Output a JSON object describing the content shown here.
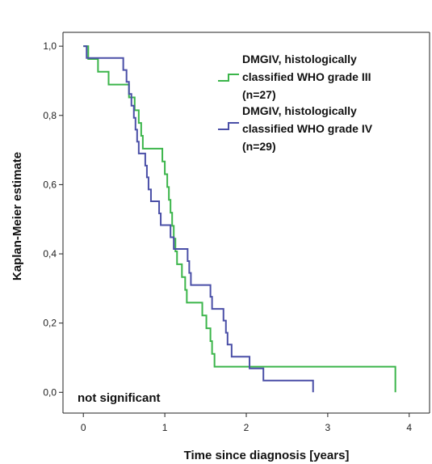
{
  "chart_data": {
    "type": "line",
    "title": "",
    "xlabel": "Time since diagnosis [years]",
    "ylabel": "Kaplan-Meier estimate",
    "xlim": [
      -0.25,
      4.25
    ],
    "ylim": [
      -0.06,
      1.04
    ],
    "x_ticks": [
      0,
      1,
      2,
      3,
      4
    ],
    "x_tick_labels": [
      "0",
      "1",
      "2",
      "3",
      "4"
    ],
    "y_ticks": [
      0.0,
      0.2,
      0.4,
      0.6,
      0.8,
      1.0
    ],
    "y_tick_labels": [
      "0,0",
      "0,2",
      "0,4",
      "0,6",
      "0,8",
      "1,0"
    ],
    "grid": false,
    "legend_position": "top-right",
    "annotation": "not significant",
    "series": [
      {
        "name_lines": [
          "DMGIV, histologically",
          "classified WHO grade III",
          "(n=27)"
        ],
        "color": "#3bb54a",
        "step": true,
        "points": [
          [
            0.0,
            1.0
          ],
          [
            0.06,
            0.963
          ],
          [
            0.17,
            0.963
          ],
          [
            0.18,
            0.926
          ],
          [
            0.3,
            0.926
          ],
          [
            0.31,
            0.889
          ],
          [
            0.55,
            0.889
          ],
          [
            0.56,
            0.852
          ],
          [
            0.62,
            0.852
          ],
          [
            0.63,
            0.815
          ],
          [
            0.67,
            0.815
          ],
          [
            0.68,
            0.778
          ],
          [
            0.7,
            0.778
          ],
          [
            0.71,
            0.741
          ],
          [
            0.72,
            0.741
          ],
          [
            0.73,
            0.704
          ],
          [
            0.96,
            0.704
          ],
          [
            0.97,
            0.667
          ],
          [
            0.99,
            0.667
          ],
          [
            1.0,
            0.63
          ],
          [
            1.02,
            0.63
          ],
          [
            1.03,
            0.593
          ],
          [
            1.04,
            0.593
          ],
          [
            1.05,
            0.556
          ],
          [
            1.06,
            0.556
          ],
          [
            1.07,
            0.519
          ],
          [
            1.08,
            0.519
          ],
          [
            1.09,
            0.481
          ],
          [
            1.1,
            0.481
          ],
          [
            1.11,
            0.444
          ],
          [
            1.12,
            0.444
          ],
          [
            1.13,
            0.407
          ],
          [
            1.14,
            0.407
          ],
          [
            1.15,
            0.37
          ],
          [
            1.2,
            0.37
          ],
          [
            1.21,
            0.333
          ],
          [
            1.24,
            0.333
          ],
          [
            1.25,
            0.296
          ],
          [
            1.26,
            0.296
          ],
          [
            1.27,
            0.259
          ],
          [
            1.45,
            0.259
          ],
          [
            1.46,
            0.222
          ],
          [
            1.5,
            0.222
          ],
          [
            1.51,
            0.185
          ],
          [
            1.55,
            0.185
          ],
          [
            1.56,
            0.148
          ],
          [
            1.57,
            0.148
          ],
          [
            1.58,
            0.111
          ],
          [
            1.6,
            0.111
          ],
          [
            1.61,
            0.074
          ],
          [
            3.83,
            0.074
          ],
          [
            3.83,
            0.0
          ]
        ]
      },
      {
        "name_lines": [
          "DMGIV, histologically",
          "classified WHO grade IV",
          "(n=29)"
        ],
        "color": "#4a4fa7",
        "step": true,
        "points": [
          [
            0.0,
            1.0
          ],
          [
            0.03,
            1.0
          ],
          [
            0.04,
            0.966
          ],
          [
            0.48,
            0.966
          ],
          [
            0.49,
            0.931
          ],
          [
            0.52,
            0.931
          ],
          [
            0.53,
            0.897
          ],
          [
            0.55,
            0.897
          ],
          [
            0.56,
            0.862
          ],
          [
            0.58,
            0.862
          ],
          [
            0.59,
            0.828
          ],
          [
            0.61,
            0.828
          ],
          [
            0.62,
            0.793
          ],
          [
            0.63,
            0.793
          ],
          [
            0.64,
            0.759
          ],
          [
            0.65,
            0.759
          ],
          [
            0.66,
            0.724
          ],
          [
            0.67,
            0.724
          ],
          [
            0.68,
            0.69
          ],
          [
            0.75,
            0.69
          ],
          [
            0.76,
            0.655
          ],
          [
            0.77,
            0.655
          ],
          [
            0.78,
            0.621
          ],
          [
            0.79,
            0.621
          ],
          [
            0.8,
            0.586
          ],
          [
            0.82,
            0.586
          ],
          [
            0.83,
            0.552
          ],
          [
            0.92,
            0.552
          ],
          [
            0.93,
            0.517
          ],
          [
            0.94,
            0.517
          ],
          [
            0.95,
            0.483
          ],
          [
            1.06,
            0.483
          ],
          [
            1.07,
            0.448
          ],
          [
            1.1,
            0.448
          ],
          [
            1.11,
            0.414
          ],
          [
            1.27,
            0.414
          ],
          [
            1.28,
            0.379
          ],
          [
            1.29,
            0.379
          ],
          [
            1.3,
            0.345
          ],
          [
            1.31,
            0.345
          ],
          [
            1.32,
            0.31
          ],
          [
            1.55,
            0.31
          ],
          [
            1.56,
            0.276
          ],
          [
            1.57,
            0.276
          ],
          [
            1.58,
            0.241
          ],
          [
            1.71,
            0.241
          ],
          [
            1.72,
            0.207
          ],
          [
            1.74,
            0.207
          ],
          [
            1.75,
            0.172
          ],
          [
            1.76,
            0.172
          ],
          [
            1.77,
            0.138
          ],
          [
            1.81,
            0.138
          ],
          [
            1.82,
            0.103
          ],
          [
            2.03,
            0.103
          ],
          [
            2.04,
            0.069
          ],
          [
            2.2,
            0.069
          ],
          [
            2.21,
            0.034
          ],
          [
            2.82,
            0.034
          ],
          [
            2.82,
            0.0
          ]
        ]
      }
    ]
  }
}
